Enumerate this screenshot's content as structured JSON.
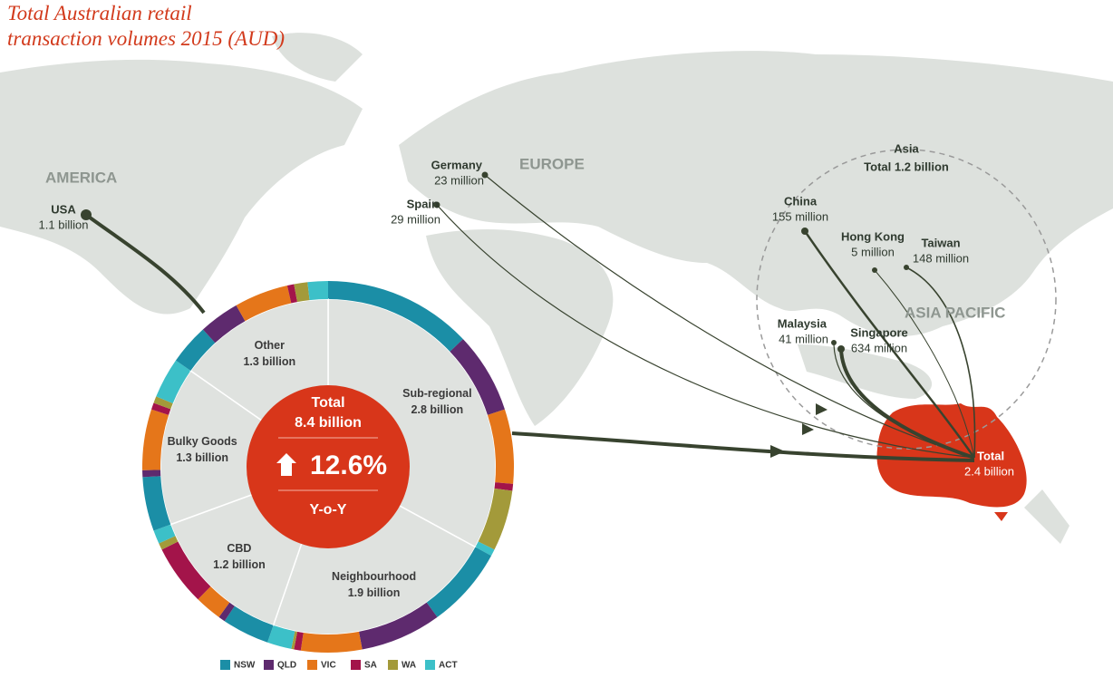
{
  "title": [
    "Total Australian retail",
    "transaction volumes 2015 (AUD)"
  ],
  "regions": {
    "america": "AMERICA",
    "europe": "EUROPE",
    "asia_pacific": "ASIA PACIFIC"
  },
  "asia": {
    "label": "Asia",
    "total": "Total 1.2 billion"
  },
  "origins": [
    {
      "name": "USA",
      "value": "1.1 billion"
    },
    {
      "name": "Germany",
      "value": "23 million"
    },
    {
      "name": "Spain",
      "value": "29 million"
    },
    {
      "name": "China",
      "value": "155 million"
    },
    {
      "name": "Hong Kong",
      "value": "5 million"
    },
    {
      "name": "Taiwan",
      "value": "148 million"
    },
    {
      "name": "Malaysia",
      "value": "41 million"
    },
    {
      "name": "Singapore",
      "value": "634 million"
    }
  ],
  "destination": {
    "name": "Total",
    "value": "2.4 billion"
  },
  "donut": {
    "total_label": "Total",
    "total_value": "8.4 billion",
    "growth": "12.6%",
    "growth_label": "Y-o-Y",
    "segments": [
      {
        "name": "Sub-regional",
        "value": 2.8,
        "value_label": "2.8 billion",
        "states": [
          1.1,
          0.6,
          0.55,
          0.05,
          0.45,
          0.05
        ]
      },
      {
        "name": "Neighbourhood",
        "value": 1.9,
        "value_label": "1.9 billion",
        "states": [
          0.6,
          0.6,
          0.45,
          0.05,
          0.02,
          0.18
        ]
      },
      {
        "name": "CBD",
        "value": 1.2,
        "value_label": "1.2 billion",
        "states": [
          0.35,
          0.05,
          0.2,
          0.45,
          0.05,
          0.1
        ]
      },
      {
        "name": "Bulky Goods",
        "value": 1.3,
        "value_label": "1.3 billion",
        "states": [
          0.4,
          0.05,
          0.45,
          0.05,
          0.05,
          0.3
        ]
      },
      {
        "name": "Other",
        "value": 1.3,
        "value_label": "1.3 billion",
        "states": [
          0.3,
          0.3,
          0.4,
          0.05,
          0.1,
          0.15
        ]
      }
    ]
  },
  "legend": [
    {
      "name": "NSW",
      "color": "#1b8ea6"
    },
    {
      "name": "QLD",
      "color": "#5e2a6e"
    },
    {
      "name": "VIC",
      "color": "#e5761a"
    },
    {
      "name": "SA",
      "color": "#a3144a"
    },
    {
      "name": "WA",
      "color": "#a39a3a"
    },
    {
      "name": "ACT",
      "color": "#3cc0c8"
    }
  ]
}
